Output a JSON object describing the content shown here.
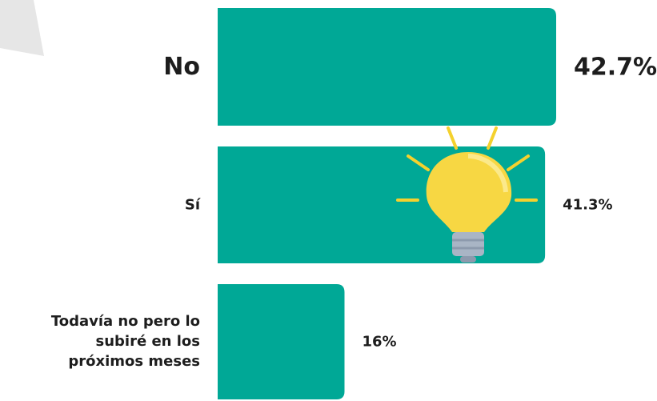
{
  "chart_data": {
    "type": "bar",
    "orientation": "horizontal",
    "categories": [
      "No",
      "Sí",
      "Todavía no pero lo\nsubiré en los\npróximos meses"
    ],
    "values": [
      42.7,
      41.3,
      16
    ],
    "value_labels": [
      "42.7%",
      "41.3%",
      "16%"
    ],
    "color": "#00a896"
  }
}
